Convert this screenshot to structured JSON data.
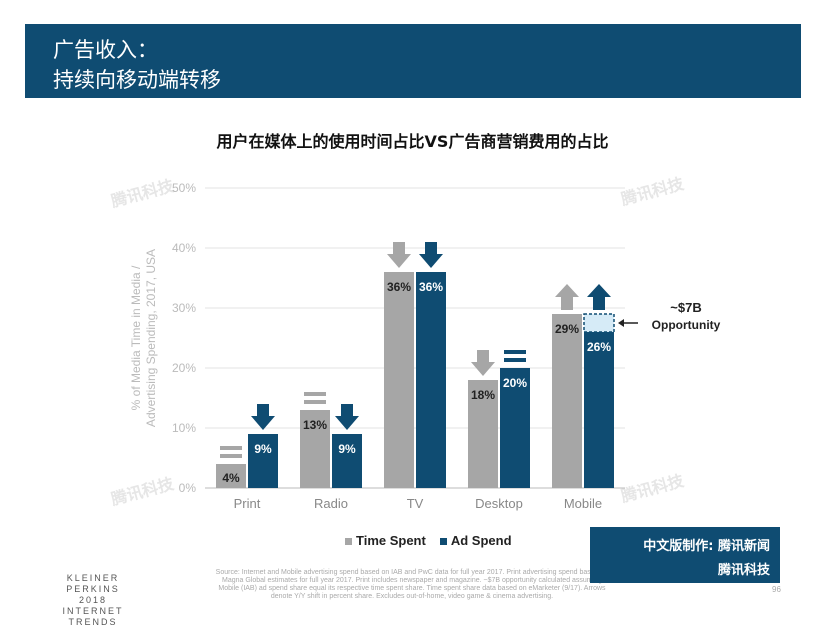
{
  "header": {
    "line1": "广告收入：",
    "line2": "持续向移动端转移"
  },
  "colors": {
    "time_spent": "#a6a6a6",
    "ad_spend": "#0f4c72",
    "opportunity_fill": "#d6ebf7",
    "header_bg": "#0f4c72"
  },
  "chart_data": {
    "type": "bar",
    "title": "用户在媒体上的使用时间占比VS广告商营销费用的占比",
    "ylabel": "% of Media Time in Media / Advertising Spending, 2017, USA",
    "ylim": [
      0,
      50
    ],
    "yticks": [
      "0%",
      "10%",
      "20%",
      "30%",
      "40%",
      "50%"
    ],
    "grid": true,
    "legend": "bottom",
    "categories": [
      "Print",
      "Radio",
      "TV",
      "Desktop",
      "Mobile"
    ],
    "series": [
      {
        "name": "Time Spent",
        "values": [
          4,
          13,
          36,
          18,
          29
        ],
        "labels": [
          "4%",
          "13%",
          "36%",
          "18%",
          "29%"
        ],
        "yoy_arrows": [
          "flat",
          "flat",
          "down",
          "down",
          "up"
        ]
      },
      {
        "name": "Ad Spend",
        "values": [
          9,
          9,
          36,
          20,
          26
        ],
        "labels": [
          "9%",
          "9%",
          "36%",
          "20%",
          "26%"
        ],
        "yoy_arrows": [
          "down",
          "down",
          "down",
          "flat",
          "up"
        ]
      }
    ],
    "annotation": {
      "line1": "~$7B",
      "line2": "Opportunity",
      "from": 26,
      "to": 29
    }
  },
  "legend": {
    "time_spent": "Time Spent",
    "ad_spend": "Ad Spend"
  },
  "footer": {
    "brand_line1": "KLEINER PERKINS",
    "brand_line2": "2018",
    "brand_line3": "INTERNET TRENDS",
    "source": "Source: Internet and Mobile advertising spend based on IAB and PwC data for full year 2017. Print advertising spend based on Magna Global estimates for full year 2017. Print includes newspaper and magazine. ~$7B opportunity calculated assuming Mobile (IAB) ad spend share equal its respective time spent share. Time spent share data based on eMarketer (9/17). Arrows denote Y/Y shift in percent share. Excludes out-of-home, video game & cinema advertising.",
    "page": "96"
  },
  "badge": {
    "line1": "中文版制作: 腾讯新闻",
    "line2": "腾讯科技"
  },
  "watermark": "腾讯科技"
}
